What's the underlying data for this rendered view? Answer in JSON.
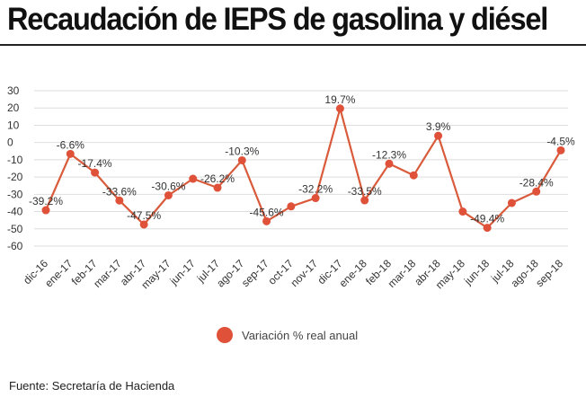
{
  "title": "Recaudación de IEPS de gasolina y diésel",
  "source": "Fuente: Secretaría de Hacienda",
  "colors": {
    "series": "#e0513a",
    "line": "#d95b3b",
    "grid": "#dedede",
    "text": "#333333"
  },
  "chart_data": {
    "type": "line",
    "title": "Recaudación de IEPS de gasolina y diésel",
    "categories": [
      "dic-16",
      "ene-17",
      "feb-17",
      "mar-17",
      "abr-17",
      "may-17",
      "jun-17",
      "jul-17",
      "ago-17",
      "sep-17",
      "oct-17",
      "nov-17",
      "dic-17",
      "ene-18",
      "feb-18",
      "mar-18",
      "abr-18",
      "may-18",
      "jun-18",
      "jul-18",
      "ago-18",
      "sep-18"
    ],
    "series": [
      {
        "name": "Variación % real anual",
        "values": [
          -39.2,
          -6.6,
          -17.4,
          -33.6,
          -47.5,
          -30.6,
          -21.0,
          -26.2,
          -10.3,
          -45.6,
          -37.0,
          -32.2,
          19.7,
          -33.5,
          -12.3,
          -19.0,
          3.9,
          -40.0,
          -49.4,
          -35.0,
          -28.4,
          -4.5
        ],
        "labels": [
          "-39.2%",
          "-6.6%",
          "-17.4%",
          "-33.6%",
          "-47.5%",
          "-30.6%",
          "",
          "-26.2%",
          "-10.3%",
          "-45.6%",
          "",
          "-32.2%",
          "19.7%",
          "-33.5%",
          "-12.3%",
          "",
          "3.9%",
          "",
          "-49.4%",
          "",
          "-28.4%",
          "-4.5%"
        ]
      }
    ],
    "yticks": [
      30,
      20,
      10,
      0,
      -10,
      -20,
      -30,
      -40,
      -50,
      -60
    ],
    "ylim": [
      -60,
      30
    ],
    "xlabel": "",
    "ylabel": "",
    "grid": true,
    "legend": "bottom-center"
  }
}
